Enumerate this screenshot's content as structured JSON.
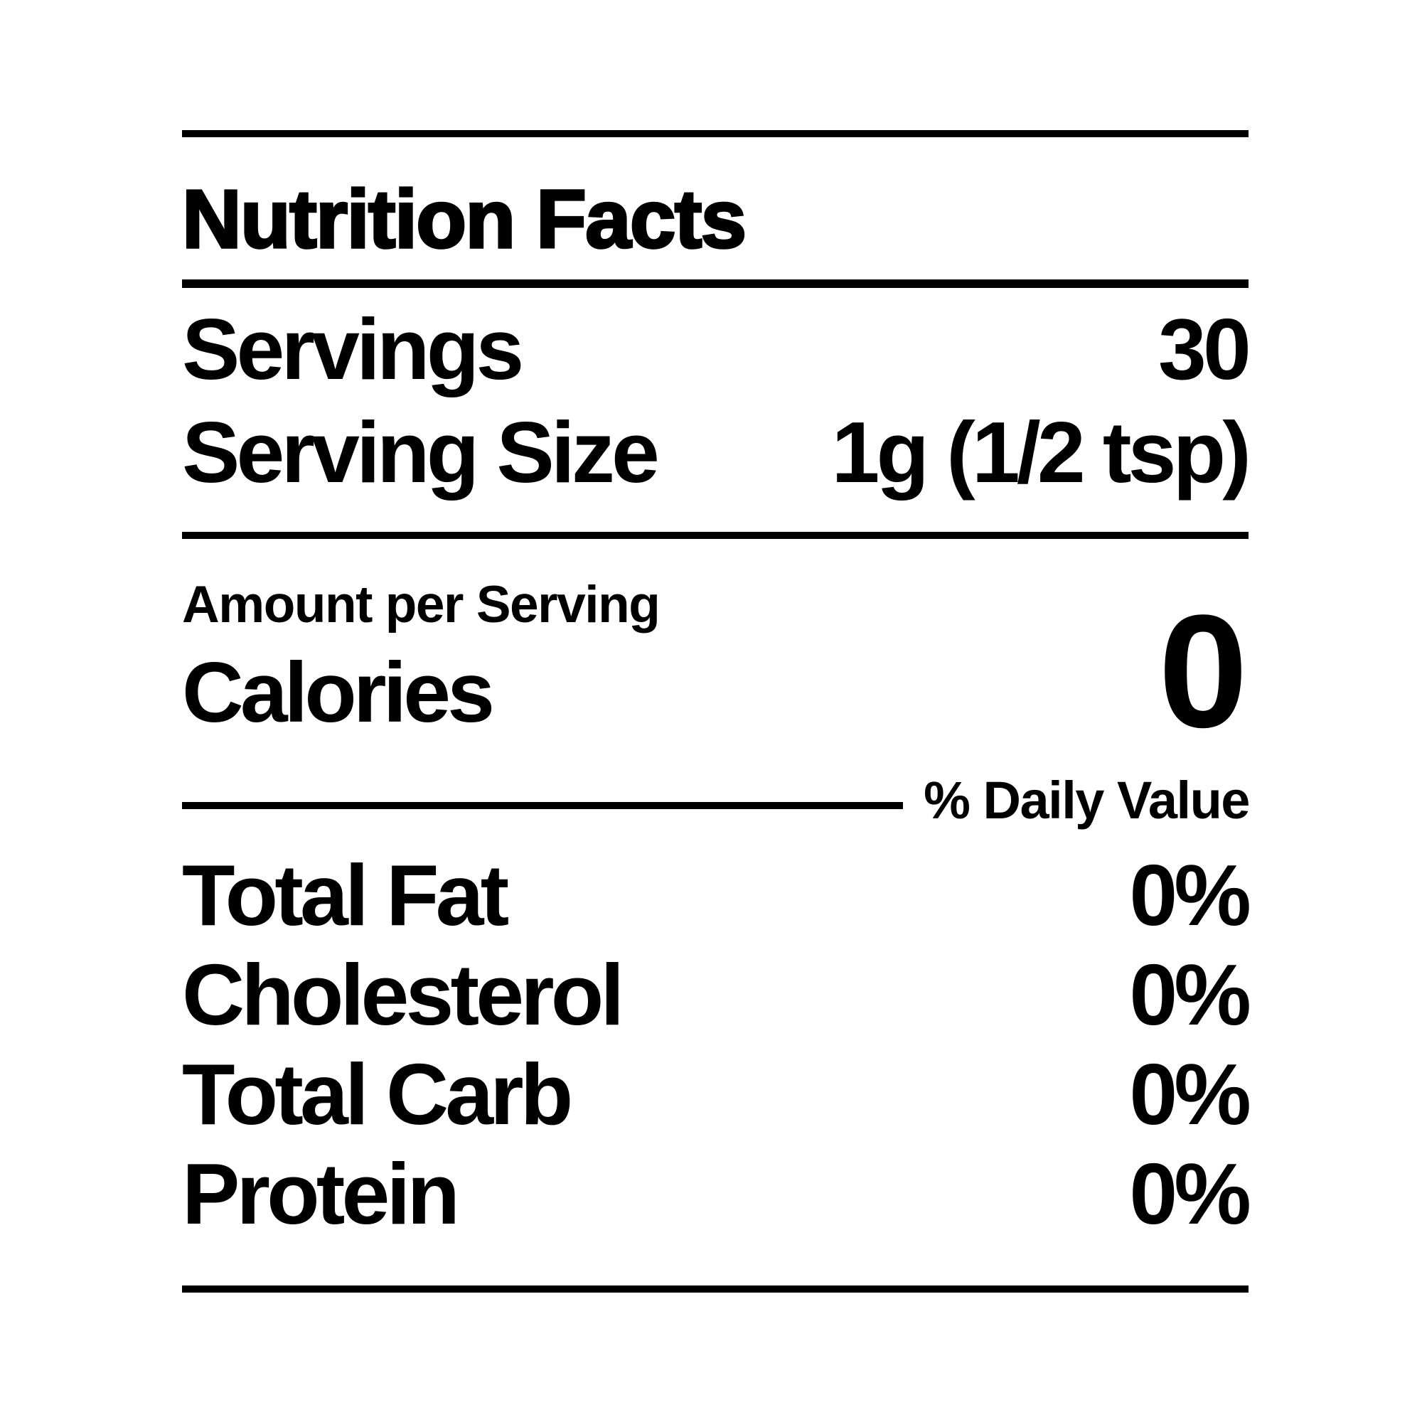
{
  "label": {
    "title": "Nutrition Facts",
    "servings_row": {
      "label": "Servings",
      "value": "30"
    },
    "serving_size_row": {
      "label": "Serving Size",
      "value": "1g (1/2 tsp)"
    },
    "amount_per_serving": "Amount per Serving",
    "calories_row": {
      "label": "Calories",
      "value": "0"
    },
    "daily_value_header": "% Daily Value",
    "nutrients": [
      {
        "name": "Total Fat",
        "daily_value": "0%"
      },
      {
        "name": "Cholesterol",
        "daily_value": "0%"
      },
      {
        "name": "Total Carb",
        "daily_value": "0%"
      },
      {
        "name": "Protein",
        "daily_value": "0%"
      }
    ],
    "colors": {
      "text": "#000000",
      "background": "#ffffff"
    }
  }
}
